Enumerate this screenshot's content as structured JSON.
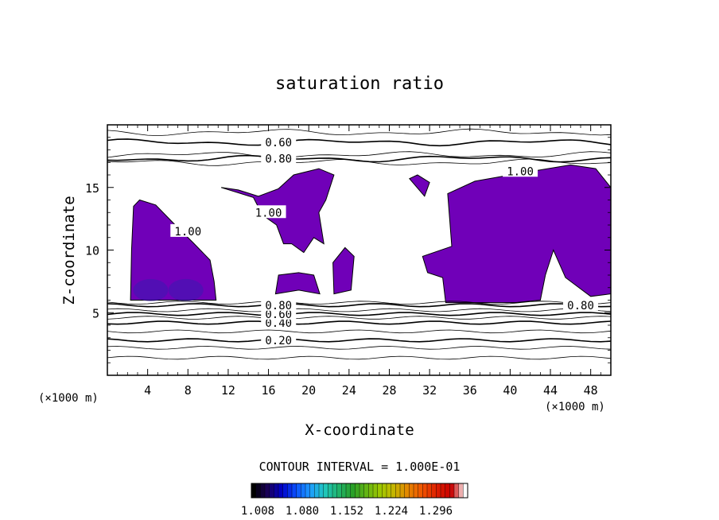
{
  "chart_data": {
    "type": "contour",
    "title": "saturation ratio",
    "xlabel": "X-coordinate",
    "ylabel": "Z-coordinate",
    "x_unit_left": "(×1000 m)",
    "x_unit_right": "(×1000 m)",
    "xlim": [
      0,
      50
    ],
    "ylim": [
      0,
      20
    ],
    "xticks": [
      "4",
      "8",
      "12",
      "16",
      "20",
      "24",
      "28",
      "32",
      "36",
      "40",
      "44",
      "48"
    ],
    "yticks": [
      "5",
      "10",
      "15"
    ],
    "contour_interval_text": "CONTOUR INTERVAL = 1.000E-01",
    "contour_lines": [
      {
        "label": "0.20",
        "z": 2.8,
        "label_x": 17
      },
      {
        "label": "0.40",
        "z": 4.2,
        "label_x": 17
      },
      {
        "label": "0.60",
        "z": 4.9,
        "label_x": 17
      },
      {
        "label": "0.80",
        "z": 5.6,
        "label_x": 17
      },
      {
        "label": "0.80",
        "z": 5.6,
        "label_x": 47
      },
      {
        "label": "0.60",
        "z": 18.6,
        "label_x": 17
      },
      {
        "label": "0.80",
        "z": 17.3,
        "label_x": 17
      },
      {
        "label": "1.00",
        "z": 16.3,
        "label_x": 41
      },
      {
        "label": "1.00",
        "z": 11.5,
        "label_x": 8
      },
      {
        "label": "1.00",
        "z": 13.0,
        "label_x": 16
      }
    ],
    "colorbar": {
      "tick_labels": [
        "1.008",
        "1.080",
        "1.152",
        "1.224",
        "1.296"
      ],
      "colors": [
        "#000000",
        "#1a005a",
        "#0000c8",
        "#0a50ff",
        "#1e9bff",
        "#20c8c0",
        "#20b46e",
        "#28a028",
        "#64b414",
        "#a0c800",
        "#c8b400",
        "#e68200",
        "#f05000",
        "#dc1e00",
        "#c80000",
        "#ffffff"
      ]
    },
    "fill_color": "#7000b8"
  }
}
